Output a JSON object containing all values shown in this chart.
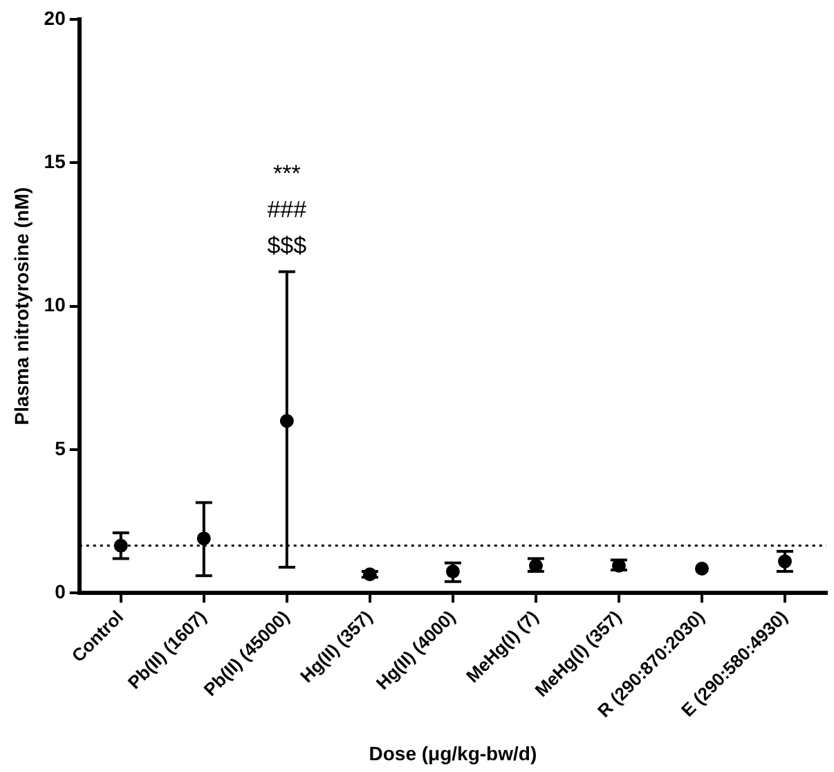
{
  "chart_data": {
    "type": "scatter",
    "categories": [
      "Control",
      "Pb(II) (1607)",
      "Pb(II) (45000)",
      "Hg(II) (357)",
      "Hg(II) (4000)",
      "MeHg(I) (7)",
      "MeHg(I) (357)",
      "R (290:870:2030)",
      "E (290:580:4930)"
    ],
    "values": [
      1.65,
      1.9,
      6.0,
      0.65,
      0.75,
      0.95,
      0.95,
      0.85,
      1.1
    ],
    "errors": [
      [
        1.2,
        2.1
      ],
      [
        0.6,
        3.15
      ],
      [
        0.9,
        11.2
      ],
      [
        0.55,
        0.75
      ],
      [
        0.4,
        1.05
      ],
      [
        0.75,
        1.2
      ],
      [
        0.8,
        1.15
      ],
      null,
      [
        0.75,
        1.45
      ]
    ],
    "color": "#000000",
    "xlabel": "Dose (μg/kg-bw/d)",
    "ylabel": "Plasma nitrotyrosine (nM)",
    "ylim": [
      0,
      20
    ],
    "yticks": [
      0,
      5,
      10,
      15,
      20
    ],
    "ref_lines": [
      {
        "axis": "y",
        "value": 1.65,
        "line_style": "dotted"
      }
    ],
    "annotations": [
      "***",
      "###",
      "$$$"
    ],
    "grid": false,
    "legend": false
  }
}
